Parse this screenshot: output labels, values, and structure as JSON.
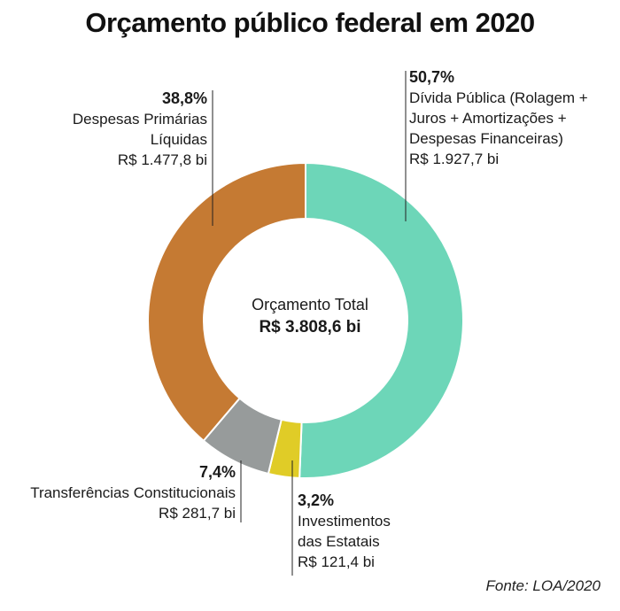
{
  "title": "Orçamento público federal em 2020",
  "source": "Fonte: LOA/2020",
  "center": {
    "label": "Orçamento Total",
    "value": "R$ 3.808,6 bi"
  },
  "colors": {
    "divida": "#6dd6b8",
    "investimentos": "#e0cc27",
    "transferencias": "#979b9b",
    "despesas": "#c57a33"
  },
  "chart_data": {
    "type": "pie",
    "donut": true,
    "title": "Orçamento público federal em 2020",
    "total": 3808.6,
    "unit": "R$ bi",
    "slices": [
      {
        "key": "divida",
        "name": "Dívida Pública (Rolagem + Juros + Amortizações + Despesas Financeiras)",
        "name_lines": [
          "Dívida Pública (Rolagem +",
          "Juros + Amortizações +",
          "Despesas Financeiras)"
        ],
        "percent": 50.7,
        "percent_label": "50,7%",
        "value": 1927.7,
        "value_label": "R$ 1.927,7 bi",
        "color": "#6dd6b8"
      },
      {
        "key": "investimentos",
        "name": "Investimentos das Estatais",
        "name_lines": [
          "Investimentos",
          "das Estatais"
        ],
        "percent": 3.2,
        "percent_label": "3,2%",
        "value": 121.4,
        "value_label": "R$ 121,4 bi",
        "color": "#e0cc27"
      },
      {
        "key": "transferencias",
        "name": "Transferências Constitucionais",
        "name_lines": [
          "Transferências Constitucionais"
        ],
        "percent": 7.4,
        "percent_label": "7,4%",
        "value": 281.7,
        "value_label": "R$ 281,7 bi",
        "color": "#979b9b"
      },
      {
        "key": "despesas",
        "name": "Despesas Primárias Líquidas",
        "name_lines": [
          "Despesas Primárias",
          "Líquidas"
        ],
        "percent": 38.8,
        "percent_label": "38,8%",
        "value": 1477.8,
        "value_label": "R$ 1.477,8 bi",
        "color": "#c57a33"
      }
    ]
  }
}
